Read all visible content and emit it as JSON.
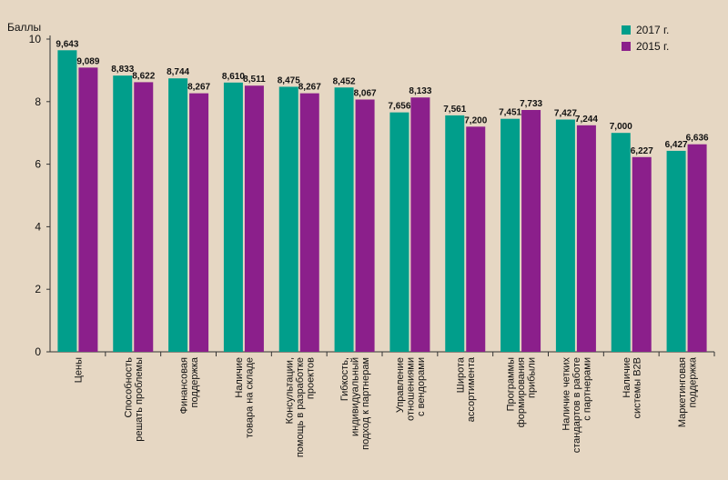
{
  "chart_data": {
    "type": "bar",
    "ylabel": "Баллы",
    "ylim": [
      0,
      10
    ],
    "yticks": [
      0,
      2,
      4,
      6,
      8,
      10
    ],
    "colors": {
      "2017 г.": "#019e8b",
      "2015 г.": "#8b1f8b"
    },
    "categories": [
      "Цены",
      "Способность решать проблемы",
      "Финансовая поддержка",
      "Наличие товара на складе",
      "Консультации, помощь в разработке проектов",
      "Гибкость, индивидуальный подход к партнерам",
      "Управление отношениями с вендорами",
      "Широта ассортимента",
      "Программы формирования прибыли",
      "Наличие четких стандартов в работе с партнерами",
      "Наличие системы B2B",
      "Маркетинговая поддержка"
    ],
    "category_lines": [
      [
        "Цены"
      ],
      [
        "Способность",
        "решать проблемы"
      ],
      [
        "Финансовая",
        "поддержка"
      ],
      [
        "Наличие",
        "товара на складе"
      ],
      [
        "Консультации,",
        "помощь в разработке",
        "проектов"
      ],
      [
        "Гибкость,",
        "индивидуальный",
        "подход к партнерам"
      ],
      [
        "Управление",
        "отношениями",
        "с вендорами"
      ],
      [
        "Широта",
        "ассортимента"
      ],
      [
        "Программы",
        "формирования",
        "прибыли"
      ],
      [
        "Наличие четких",
        "стандартов в работе",
        "с партнерами"
      ],
      [
        "Наличие",
        "системы B2B"
      ],
      [
        "Маркетинговая",
        "поддержка"
      ]
    ],
    "series": [
      {
        "name": "2017 г.",
        "values": [
          9.643,
          8.833,
          8.744,
          8.61,
          8.475,
          8.452,
          7.656,
          7.561,
          7.451,
          7.427,
          7.0,
          6.427
        ],
        "labels": [
          "9,643",
          "8,833",
          "8,744",
          "8,610",
          "8,475",
          "8,452",
          "7,656",
          "7,561",
          "7,451",
          "7,427",
          "7,000",
          "6,427"
        ]
      },
      {
        "name": "2015 г.",
        "values": [
          9.089,
          8.622,
          8.267,
          8.511,
          8.267,
          8.067,
          8.133,
          7.2,
          7.733,
          7.244,
          6.227,
          6.636
        ],
        "labels": [
          "9,089",
          "8,622",
          "8,267",
          "8,511",
          "8,267",
          "8,067",
          "8,133",
          "7,200",
          "7,733",
          "7,244",
          "6,227",
          "6,636"
        ]
      }
    ]
  },
  "legend": {
    "items": [
      {
        "label": "2017 г.",
        "color": "#019e8b"
      },
      {
        "label": "2015 г.",
        "color": "#8b1f8b"
      }
    ]
  }
}
